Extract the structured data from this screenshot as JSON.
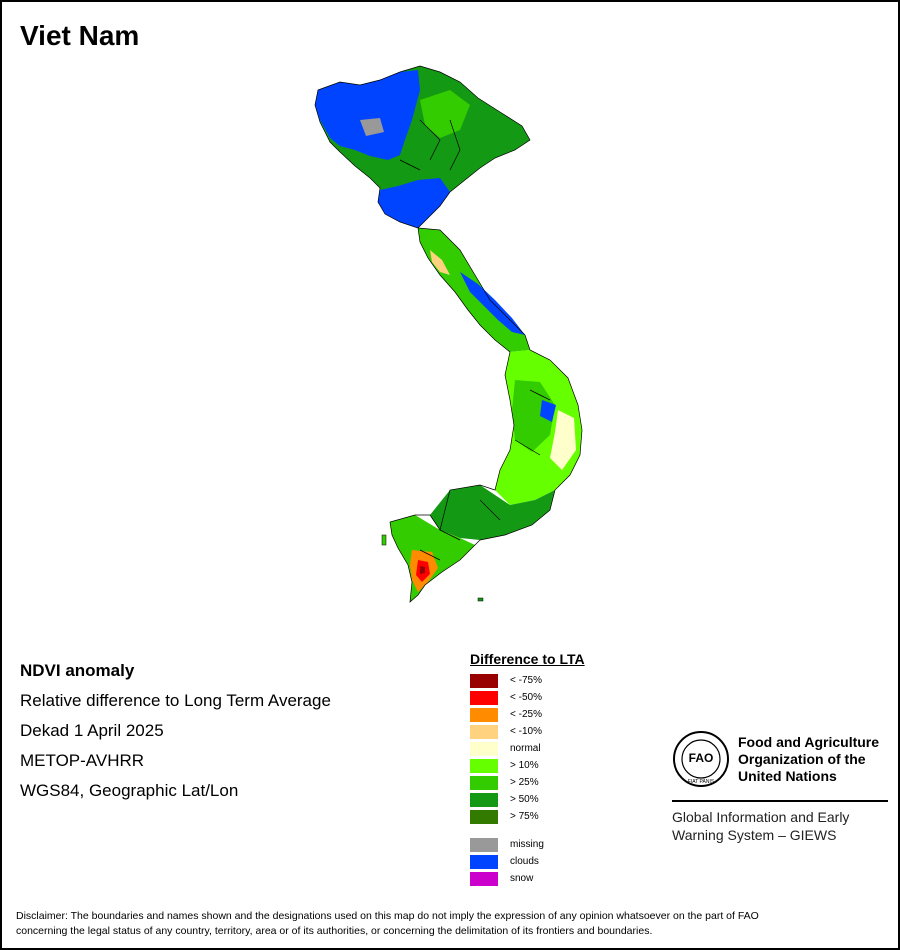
{
  "title": "Viet Nam",
  "info": {
    "heading": "NDVI anomaly",
    "line1": "Relative difference to Long Term Average",
    "line2": "Dekad 1 April 2025",
    "line3": "METOP-AVHRR",
    "line4": "WGS84, Geographic Lat/Lon"
  },
  "legend": {
    "title": "Difference to LTA",
    "classes": [
      {
        "label": "< -75%",
        "color": "#990000"
      },
      {
        "label": "< -50%",
        "color": "#ff0000"
      },
      {
        "label": "< -25%",
        "color": "#ff8c00"
      },
      {
        "label": "< -10%",
        "color": "#ffd280"
      },
      {
        "label": "normal",
        "color": "#ffffcc"
      },
      {
        "label": "> 10%",
        "color": "#66ff00"
      },
      {
        "label": "> 25%",
        "color": "#33cc00"
      },
      {
        "label": "> 50%",
        "color": "#149914"
      },
      {
        "label": "> 75%",
        "color": "#337a00"
      }
    ],
    "special": [
      {
        "label": "missing",
        "color": "#999999"
      },
      {
        "label": "clouds",
        "color": "#0044ff"
      },
      {
        "label": "snow",
        "color": "#cc00cc"
      }
    ]
  },
  "fao": {
    "logo_letters": "FAO",
    "logo_ring_text": "FIAT PANIS",
    "name_line1": "Food and Agriculture",
    "name_line2": "Organization of the",
    "name_line3": "United Nations",
    "sub_line1": "Global Information and Early",
    "sub_line2": "Warning System – GIEWS"
  },
  "disclaimer_line1": "Disclaimer: The boundaries and names shown and the designations used on this map do not imply the expression of any opinion whatsoever on the part of FAO",
  "disclaimer_line2": "concerning the legal status of any country, territory, area or of its authorities, or concerning the delimitation of its frontiers and boundaries."
}
